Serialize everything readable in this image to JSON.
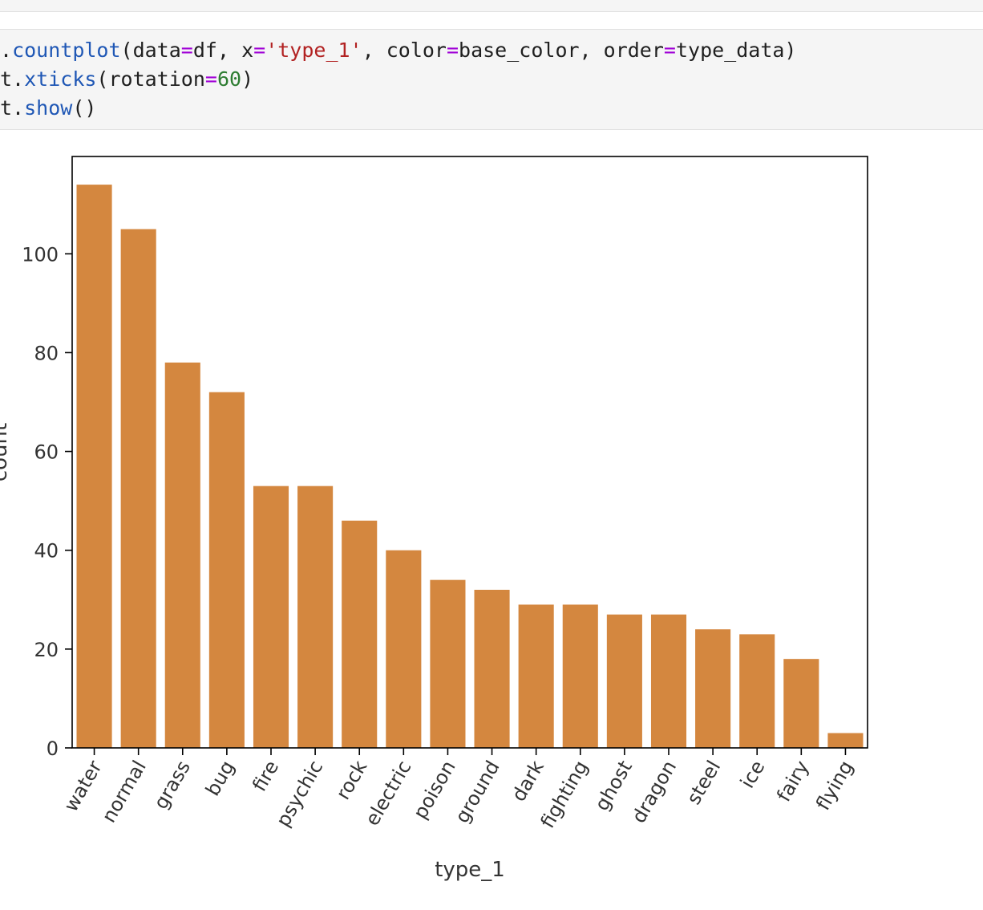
{
  "code": {
    "lines": [
      [
        {
          "t": ".",
          "c": "plain"
        },
        {
          "t": "countplot",
          "c": "fn"
        },
        {
          "t": "(data",
          "c": "plain"
        },
        {
          "t": "=",
          "c": "op"
        },
        {
          "t": "df, x",
          "c": "plain"
        },
        {
          "t": "=",
          "c": "op"
        },
        {
          "t": "'type_1'",
          "c": "str"
        },
        {
          "t": ", color",
          "c": "plain"
        },
        {
          "t": "=",
          "c": "op"
        },
        {
          "t": "base_color, order",
          "c": "plain"
        },
        {
          "t": "=",
          "c": "op"
        },
        {
          "t": "type_data)",
          "c": "plain"
        }
      ],
      [
        {
          "t": "t.",
          "c": "plain"
        },
        {
          "t": "xticks",
          "c": "fn"
        },
        {
          "t": "(rotation",
          "c": "plain"
        },
        {
          "t": "=",
          "c": "op"
        },
        {
          "t": "60",
          "c": "num"
        },
        {
          "t": ")",
          "c": "plain"
        }
      ],
      [
        {
          "t": "t.",
          "c": "plain"
        },
        {
          "t": "show",
          "c": "fn"
        },
        {
          "t": "()",
          "c": "plain"
        }
      ]
    ]
  },
  "chart_data": {
    "type": "bar",
    "title": "",
    "xlabel": "type_1",
    "ylabel": "count",
    "categories": [
      "water",
      "normal",
      "grass",
      "bug",
      "fire",
      "psychic",
      "rock",
      "electric",
      "poison",
      "ground",
      "dark",
      "fighting",
      "ghost",
      "dragon",
      "steel",
      "ice",
      "fairy",
      "flying"
    ],
    "values": [
      114,
      105,
      78,
      72,
      53,
      53,
      46,
      40,
      34,
      32,
      29,
      29,
      27,
      27,
      24,
      23,
      18,
      3
    ],
    "yticks": [
      0,
      20,
      40,
      60,
      80,
      100
    ],
    "ylim": [
      0,
      119.7
    ],
    "xtick_rotation": 60,
    "grid": false,
    "bar_color": "#d4873f"
  }
}
